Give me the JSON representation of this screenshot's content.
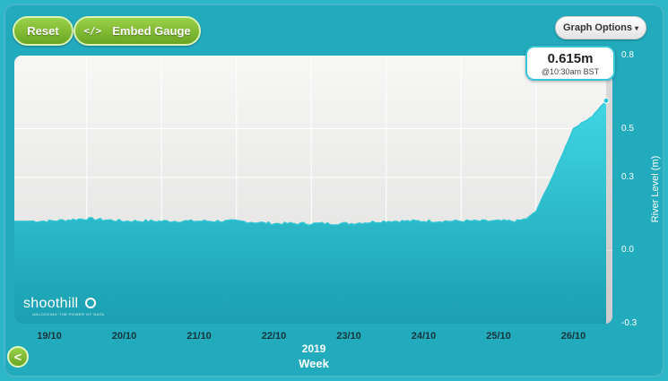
{
  "toolbar": {
    "reset_label": "Reset",
    "embed_icon": "</>",
    "embed_label": "Embed Gauge",
    "graph_options_label": "Graph Options",
    "graph_options_caret": "▾"
  },
  "tooltip": {
    "value": "0.615m",
    "time": "@10:30am BST"
  },
  "logo": {
    "text": "shoothill",
    "tagline": "UNLOCKING THE POWER OF DATA"
  },
  "colors": {
    "accent": "#33c7d8",
    "button_green": "#7cb82f",
    "background": "#22aabd"
  },
  "back_icon": "<",
  "chart_data": {
    "type": "area",
    "title": "",
    "xlabel": "Week",
    "year_label": "2019",
    "ylabel": "River Level (m)",
    "ylim": [
      -0.3,
      0.8
    ],
    "yticks": [
      "0.8",
      "0.5",
      "0.3",
      "0.0",
      "-0.3"
    ],
    "ytick_values": [
      0.8,
      0.5,
      0.3,
      0.0,
      -0.3
    ],
    "xticks": [
      "19/10",
      "20/10",
      "21/10",
      "22/10",
      "23/10",
      "24/10",
      "25/10",
      "26/10"
    ],
    "x": [
      "18/10 18:00",
      "19/10 00:00",
      "19/10 12:00",
      "20/10 00:00",
      "20/10 12:00",
      "21/10 00:00",
      "21/10 12:00",
      "22/10 00:00",
      "22/10 12:00",
      "23/10 00:00",
      "23/10 12:00",
      "24/10 00:00",
      "24/10 12:00",
      "25/10 00:00",
      "25/10 06:00",
      "25/10 09:00",
      "25/10 12:00",
      "25/10 15:00",
      "25/10 18:00",
      "26/10 00:00",
      "26/10 06:00",
      "26/10 10:30"
    ],
    "series": [
      {
        "values": [
          0.12,
          0.12,
          0.13,
          0.12,
          0.12,
          0.12,
          0.12,
          0.11,
          0.11,
          0.11,
          0.12,
          0.12,
          0.12,
          0.12,
          0.12,
          0.13,
          0.16,
          0.24,
          0.32,
          0.5,
          0.55,
          0.615
        ]
      }
    ],
    "grid": true
  }
}
